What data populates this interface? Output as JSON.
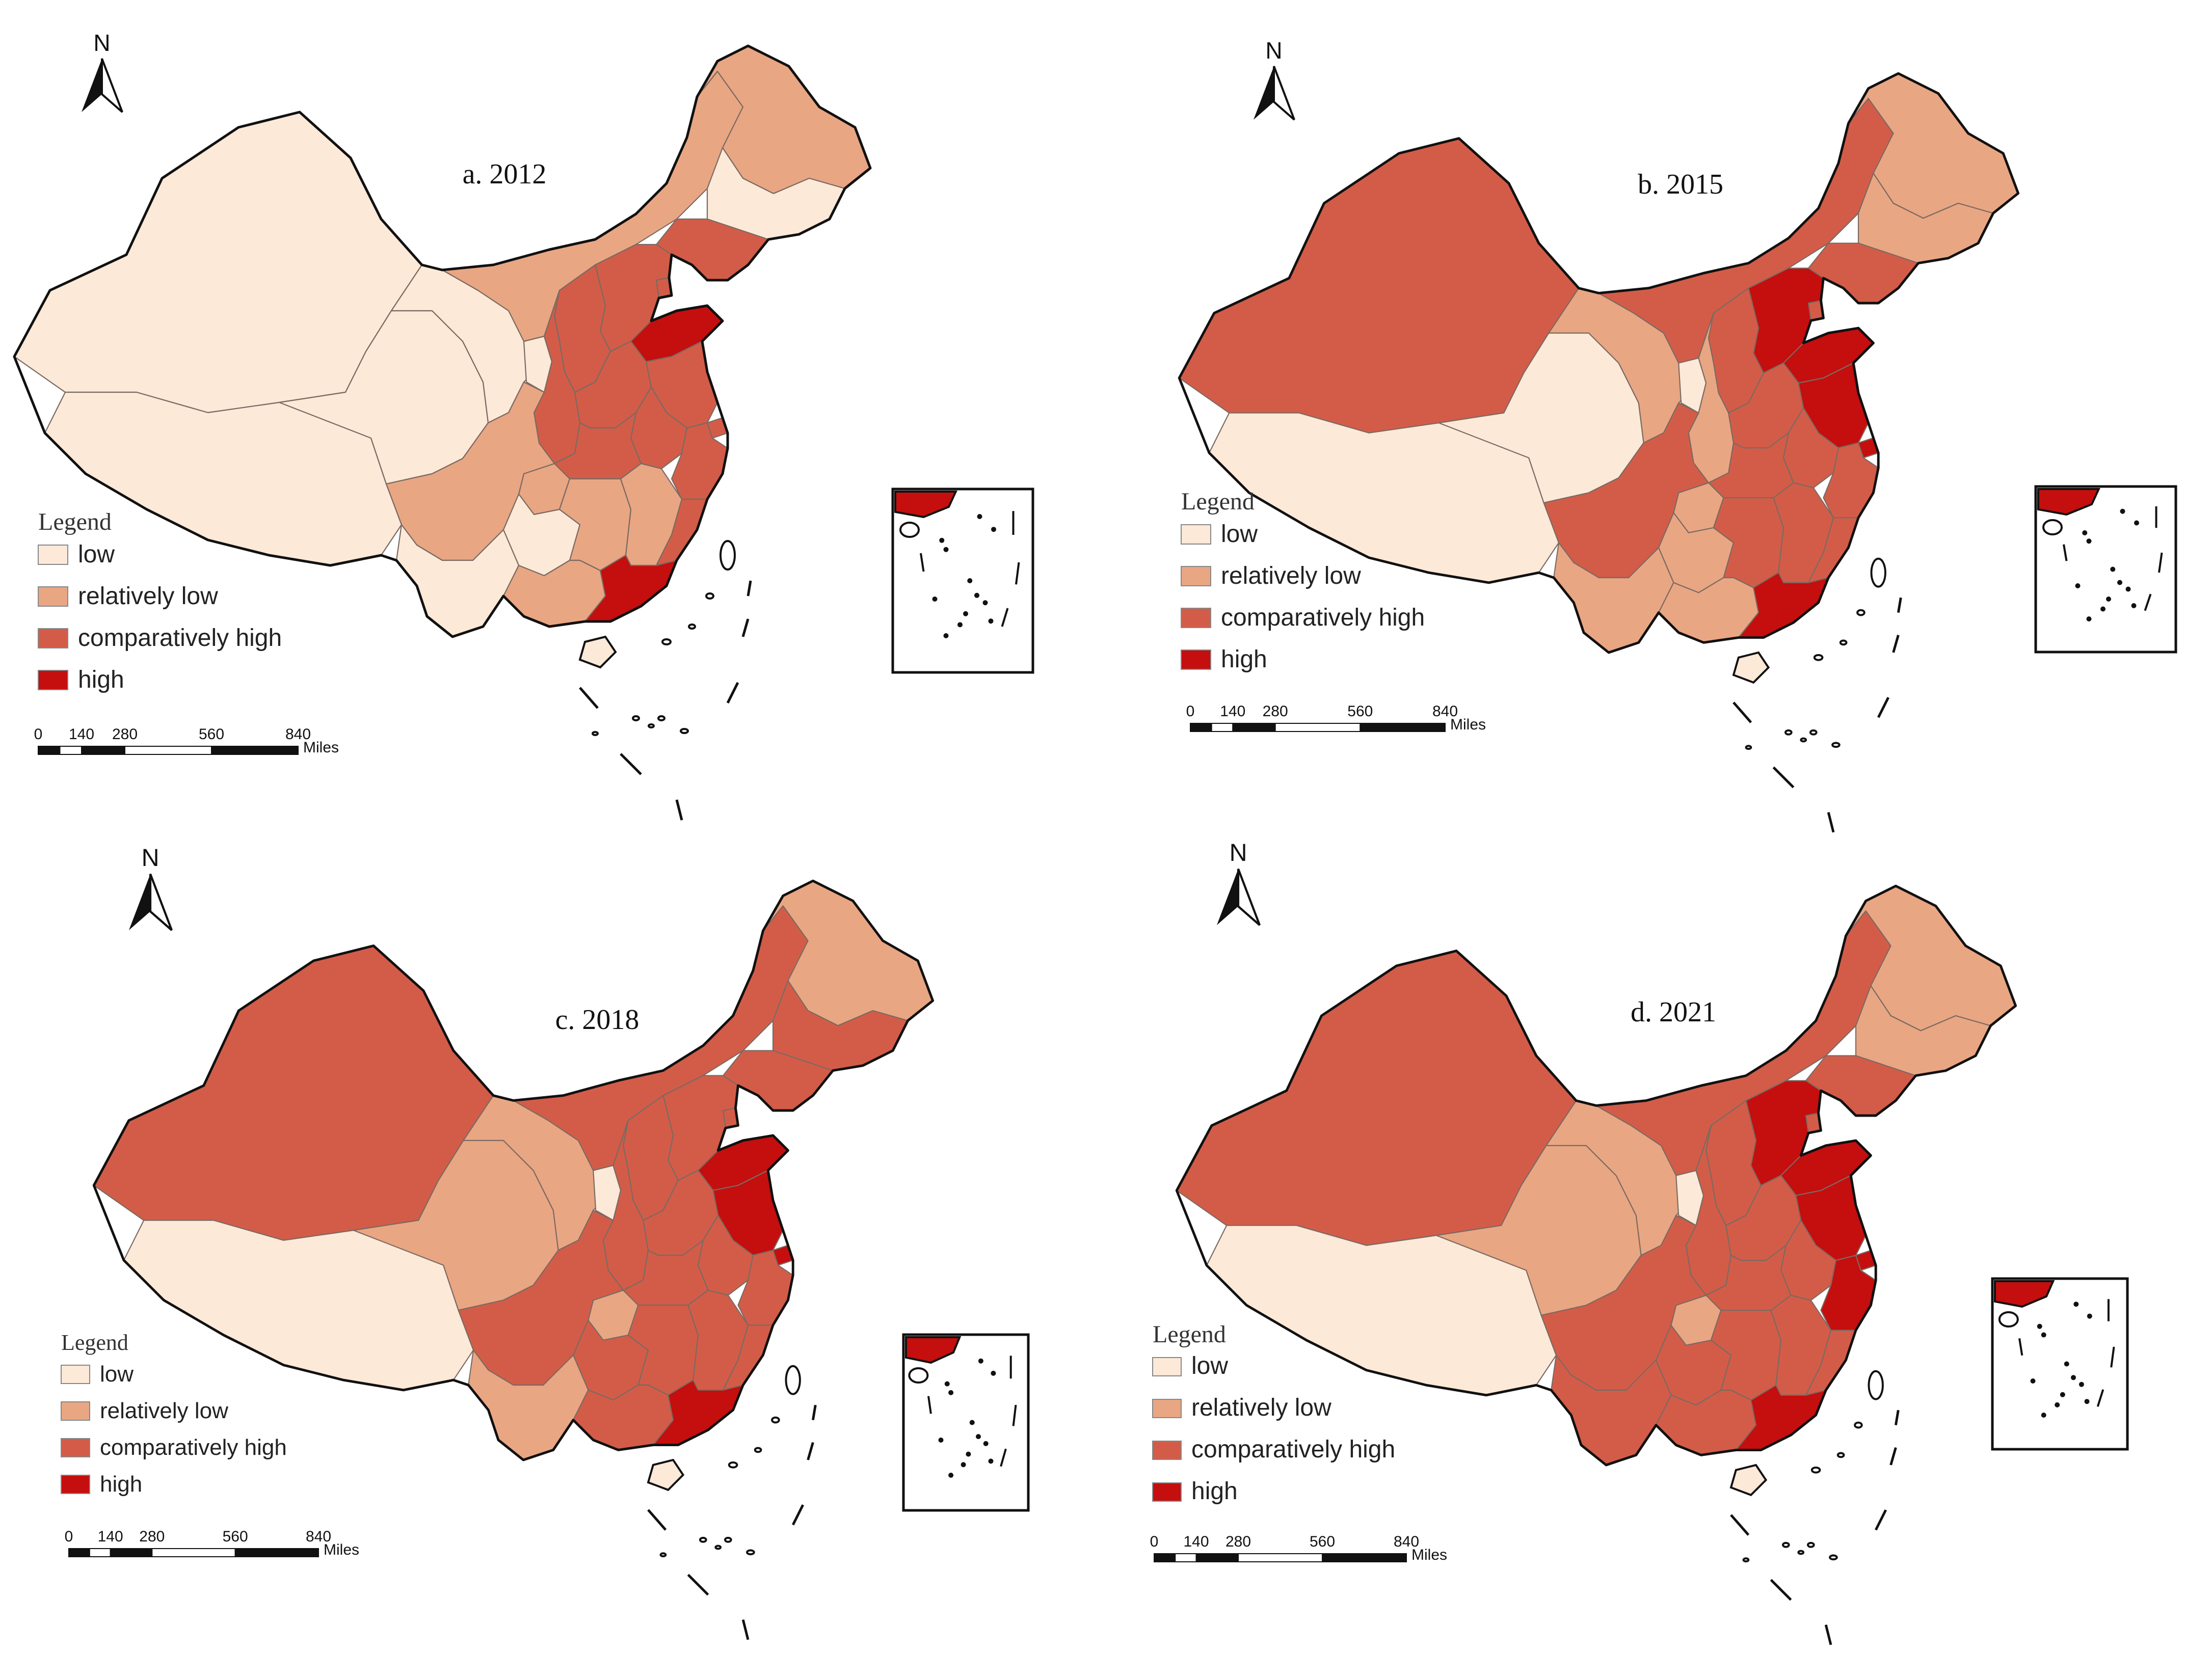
{
  "legend_title": "Legend",
  "compass_letter": "N",
  "scale": {
    "ticks": [
      "0",
      "140",
      "280",
      "560",
      "840"
    ],
    "unit": "Miles"
  },
  "categories": [
    {
      "key": "low",
      "label": "low",
      "color": "#fde9d8"
    },
    {
      "key": "rel_low",
      "label": "relatively low",
      "color": "#e9a683"
    },
    {
      "key": "comp_high",
      "label": "comparatively high",
      "color": "#d35c48"
    },
    {
      "key": "high",
      "label": "high",
      "color": "#c50e0e"
    }
  ],
  "outline_color": "#111111",
  "border_color": "#7a6a62",
  "panels": [
    {
      "title": "a. 2012",
      "regions": {
        "xinjiang": "low",
        "tibet": "low",
        "qinghai": "low",
        "gansu": "low",
        "ningxia": "low",
        "inner_mongolia": "rel_low",
        "heilongjiang": "rel_low",
        "jilin": "low",
        "liaoning": "comp_high",
        "hebei": "comp_high",
        "beijing": "comp_high",
        "tianjin": "comp_high",
        "shandong": "high",
        "shanxi": "comp_high",
        "shaanxi": "comp_high",
        "henan": "comp_high",
        "jiangsu": "comp_high",
        "anhui": "comp_high",
        "shanghai": "comp_high",
        "zhejiang": "comp_high",
        "hubei": "comp_high",
        "sichuan": "rel_low",
        "chongqing": "rel_low",
        "yunnan": "low",
        "guizhou": "low",
        "guangxi": "rel_low",
        "hunan": "rel_low",
        "jiangxi": "rel_low",
        "fujian": "comp_high",
        "guangdong": "high",
        "hainan": "low"
      }
    },
    {
      "title": "b. 2015",
      "regions": {
        "xinjiang": "comp_high",
        "tibet": "low",
        "qinghai": "low",
        "gansu": "rel_low",
        "ningxia": "low",
        "inner_mongolia": "comp_high",
        "heilongjiang": "rel_low",
        "jilin": "rel_low",
        "liaoning": "comp_high",
        "hebei": "high",
        "beijing": "comp_high",
        "tianjin": "comp_high",
        "shandong": "high",
        "shanxi": "comp_high",
        "shaanxi": "rel_low",
        "henan": "comp_high",
        "jiangsu": "high",
        "anhui": "comp_high",
        "shanghai": "high",
        "zhejiang": "comp_high",
        "hubei": "comp_high",
        "sichuan": "comp_high",
        "chongqing": "rel_low",
        "yunnan": "rel_low",
        "guizhou": "rel_low",
        "guangxi": "rel_low",
        "hunan": "comp_high",
        "jiangxi": "comp_high",
        "fujian": "comp_high",
        "guangdong": "high",
        "hainan": "low"
      }
    },
    {
      "title": "c. 2018",
      "regions": {
        "xinjiang": "comp_high",
        "tibet": "low",
        "qinghai": "rel_low",
        "gansu": "rel_low",
        "ningxia": "low",
        "inner_mongolia": "comp_high",
        "heilongjiang": "rel_low",
        "jilin": "comp_high",
        "liaoning": "comp_high",
        "hebei": "comp_high",
        "beijing": "comp_high",
        "tianjin": "comp_high",
        "shandong": "high",
        "shanxi": "comp_high",
        "shaanxi": "comp_high",
        "henan": "comp_high",
        "jiangsu": "high",
        "anhui": "comp_high",
        "shanghai": "high",
        "zhejiang": "comp_high",
        "hubei": "comp_high",
        "sichuan": "comp_high",
        "chongqing": "rel_low",
        "yunnan": "rel_low",
        "guizhou": "comp_high",
        "guangxi": "comp_high",
        "hunan": "comp_high",
        "jiangxi": "comp_high",
        "fujian": "comp_high",
        "guangdong": "high",
        "hainan": "low"
      }
    },
    {
      "title": "d. 2021",
      "regions": {
        "xinjiang": "comp_high",
        "tibet": "low",
        "qinghai": "rel_low",
        "gansu": "rel_low",
        "ningxia": "low",
        "inner_mongolia": "comp_high",
        "heilongjiang": "rel_low",
        "jilin": "rel_low",
        "liaoning": "comp_high",
        "hebei": "high",
        "beijing": "comp_high",
        "tianjin": "comp_high",
        "shandong": "high",
        "shanxi": "comp_high",
        "shaanxi": "comp_high",
        "henan": "comp_high",
        "jiangsu": "high",
        "anhui": "comp_high",
        "shanghai": "high",
        "zhejiang": "high",
        "hubei": "comp_high",
        "sichuan": "comp_high",
        "chongqing": "rel_low",
        "yunnan": "comp_high",
        "guizhou": "comp_high",
        "guangxi": "comp_high",
        "hunan": "comp_high",
        "jiangxi": "comp_high",
        "fujian": "comp_high",
        "guangdong": "high",
        "hainan": "low"
      }
    }
  ]
}
